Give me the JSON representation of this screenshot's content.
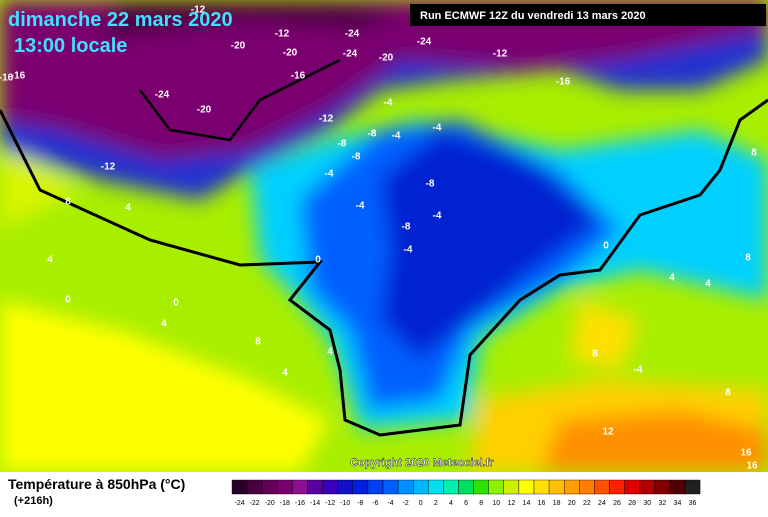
{
  "header": {
    "date": "dimanche 22 mars 2020",
    "time": "13:00 locale",
    "run": "Run ECMWF 12Z du vendredi 13 mars 2020"
  },
  "copyright": "Copyright 2020 Meteociel.fr",
  "legend": {
    "title": "Température à 850hPa (°C)",
    "lead": "(+216h)",
    "ticks": [
      -24,
      -22,
      -20,
      -18,
      -16,
      -14,
      -12,
      -10,
      -8,
      -6,
      -4,
      -2,
      0,
      2,
      4,
      6,
      8,
      10,
      12,
      14,
      16,
      18,
      20,
      22,
      24,
      26,
      28,
      30,
      32,
      34,
      36
    ],
    "colors": [
      "#2a0028",
      "#4b0040",
      "#640058",
      "#7a0070",
      "#8c1090",
      "#5a00a0",
      "#3a00b8",
      "#1010c8",
      "#0020e0",
      "#0040f0",
      "#0060ff",
      "#0090ff",
      "#00b8ff",
      "#00e0f0",
      "#00f0b0",
      "#00e060",
      "#30e000",
      "#90f000",
      "#d0f000",
      "#ffff00",
      "#ffe000",
      "#ffc000",
      "#ffa000",
      "#ff8000",
      "#ff5000",
      "#ff2000",
      "#e00000",
      "#b00000",
      "#800000",
      "#500000",
      "#202020"
    ]
  },
  "contour_labels": [
    -12,
    -20,
    -12,
    -20,
    -24,
    -24,
    -20,
    -24,
    -12,
    -16,
    -16,
    -16,
    -24,
    -20,
    -12,
    -16,
    -12,
    -4,
    -8,
    -4,
    -8,
    -4,
    -4,
    -8,
    -4,
    -8,
    -4,
    -8,
    -4,
    8,
    4,
    4,
    0,
    0,
    4,
    0,
    4,
    4,
    0,
    4,
    8,
    8,
    8,
    4,
    -4,
    8,
    12,
    16,
    16,
    8
  ]
}
